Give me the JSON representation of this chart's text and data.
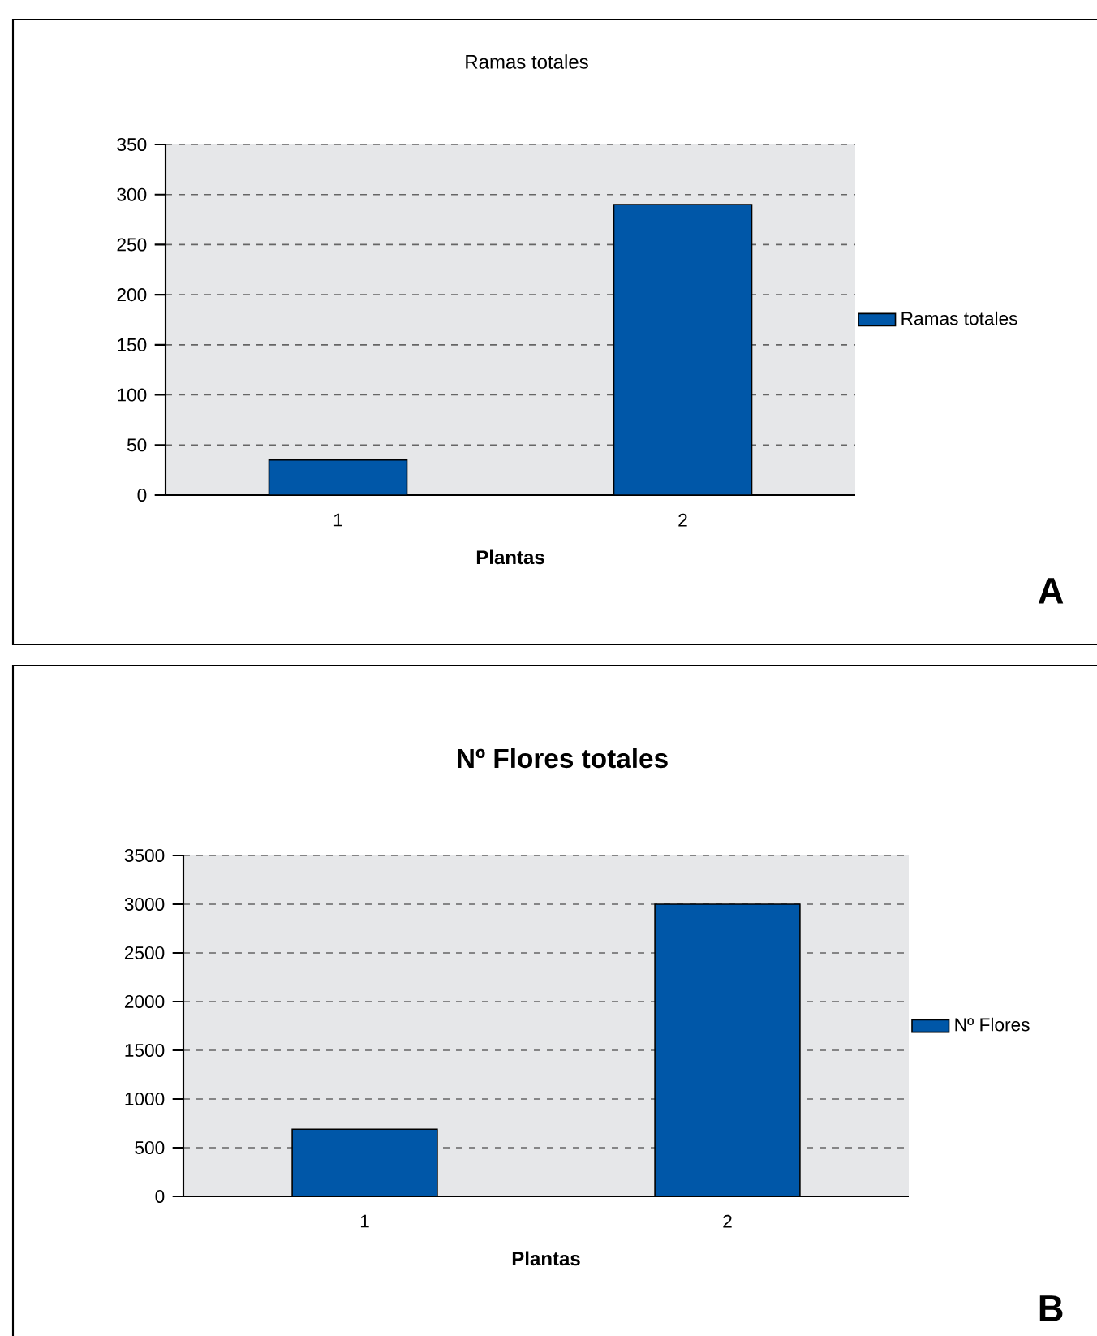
{
  "chart_data": [
    {
      "type": "bar",
      "title": "Ramas totales",
      "xlabel": "Plantas",
      "categories": [
        "1",
        "2"
      ],
      "series": [
        {
          "name": "Ramas totales",
          "color": "#0057a8",
          "values": [
            35,
            290
          ]
        }
      ],
      "ylim": [
        0,
        350
      ],
      "yticks": [
        0,
        50,
        100,
        150,
        200,
        250,
        300,
        350
      ],
      "grid": "y",
      "legend": "right",
      "annotations": [
        "A"
      ]
    },
    {
      "type": "bar",
      "title": "Nº Flores totales",
      "xlabel": "Plantas",
      "categories": [
        "1",
        "2"
      ],
      "series": [
        {
          "name": "Nº Flores",
          "color": "#0057a8",
          "values": [
            690,
            3000
          ]
        }
      ],
      "ylim": [
        0,
        3500
      ],
      "yticks": [
        0,
        500,
        1000,
        1500,
        2000,
        2500,
        3000,
        3500
      ],
      "grid": "y",
      "legend": "right",
      "annotations": [
        "B"
      ]
    }
  ]
}
